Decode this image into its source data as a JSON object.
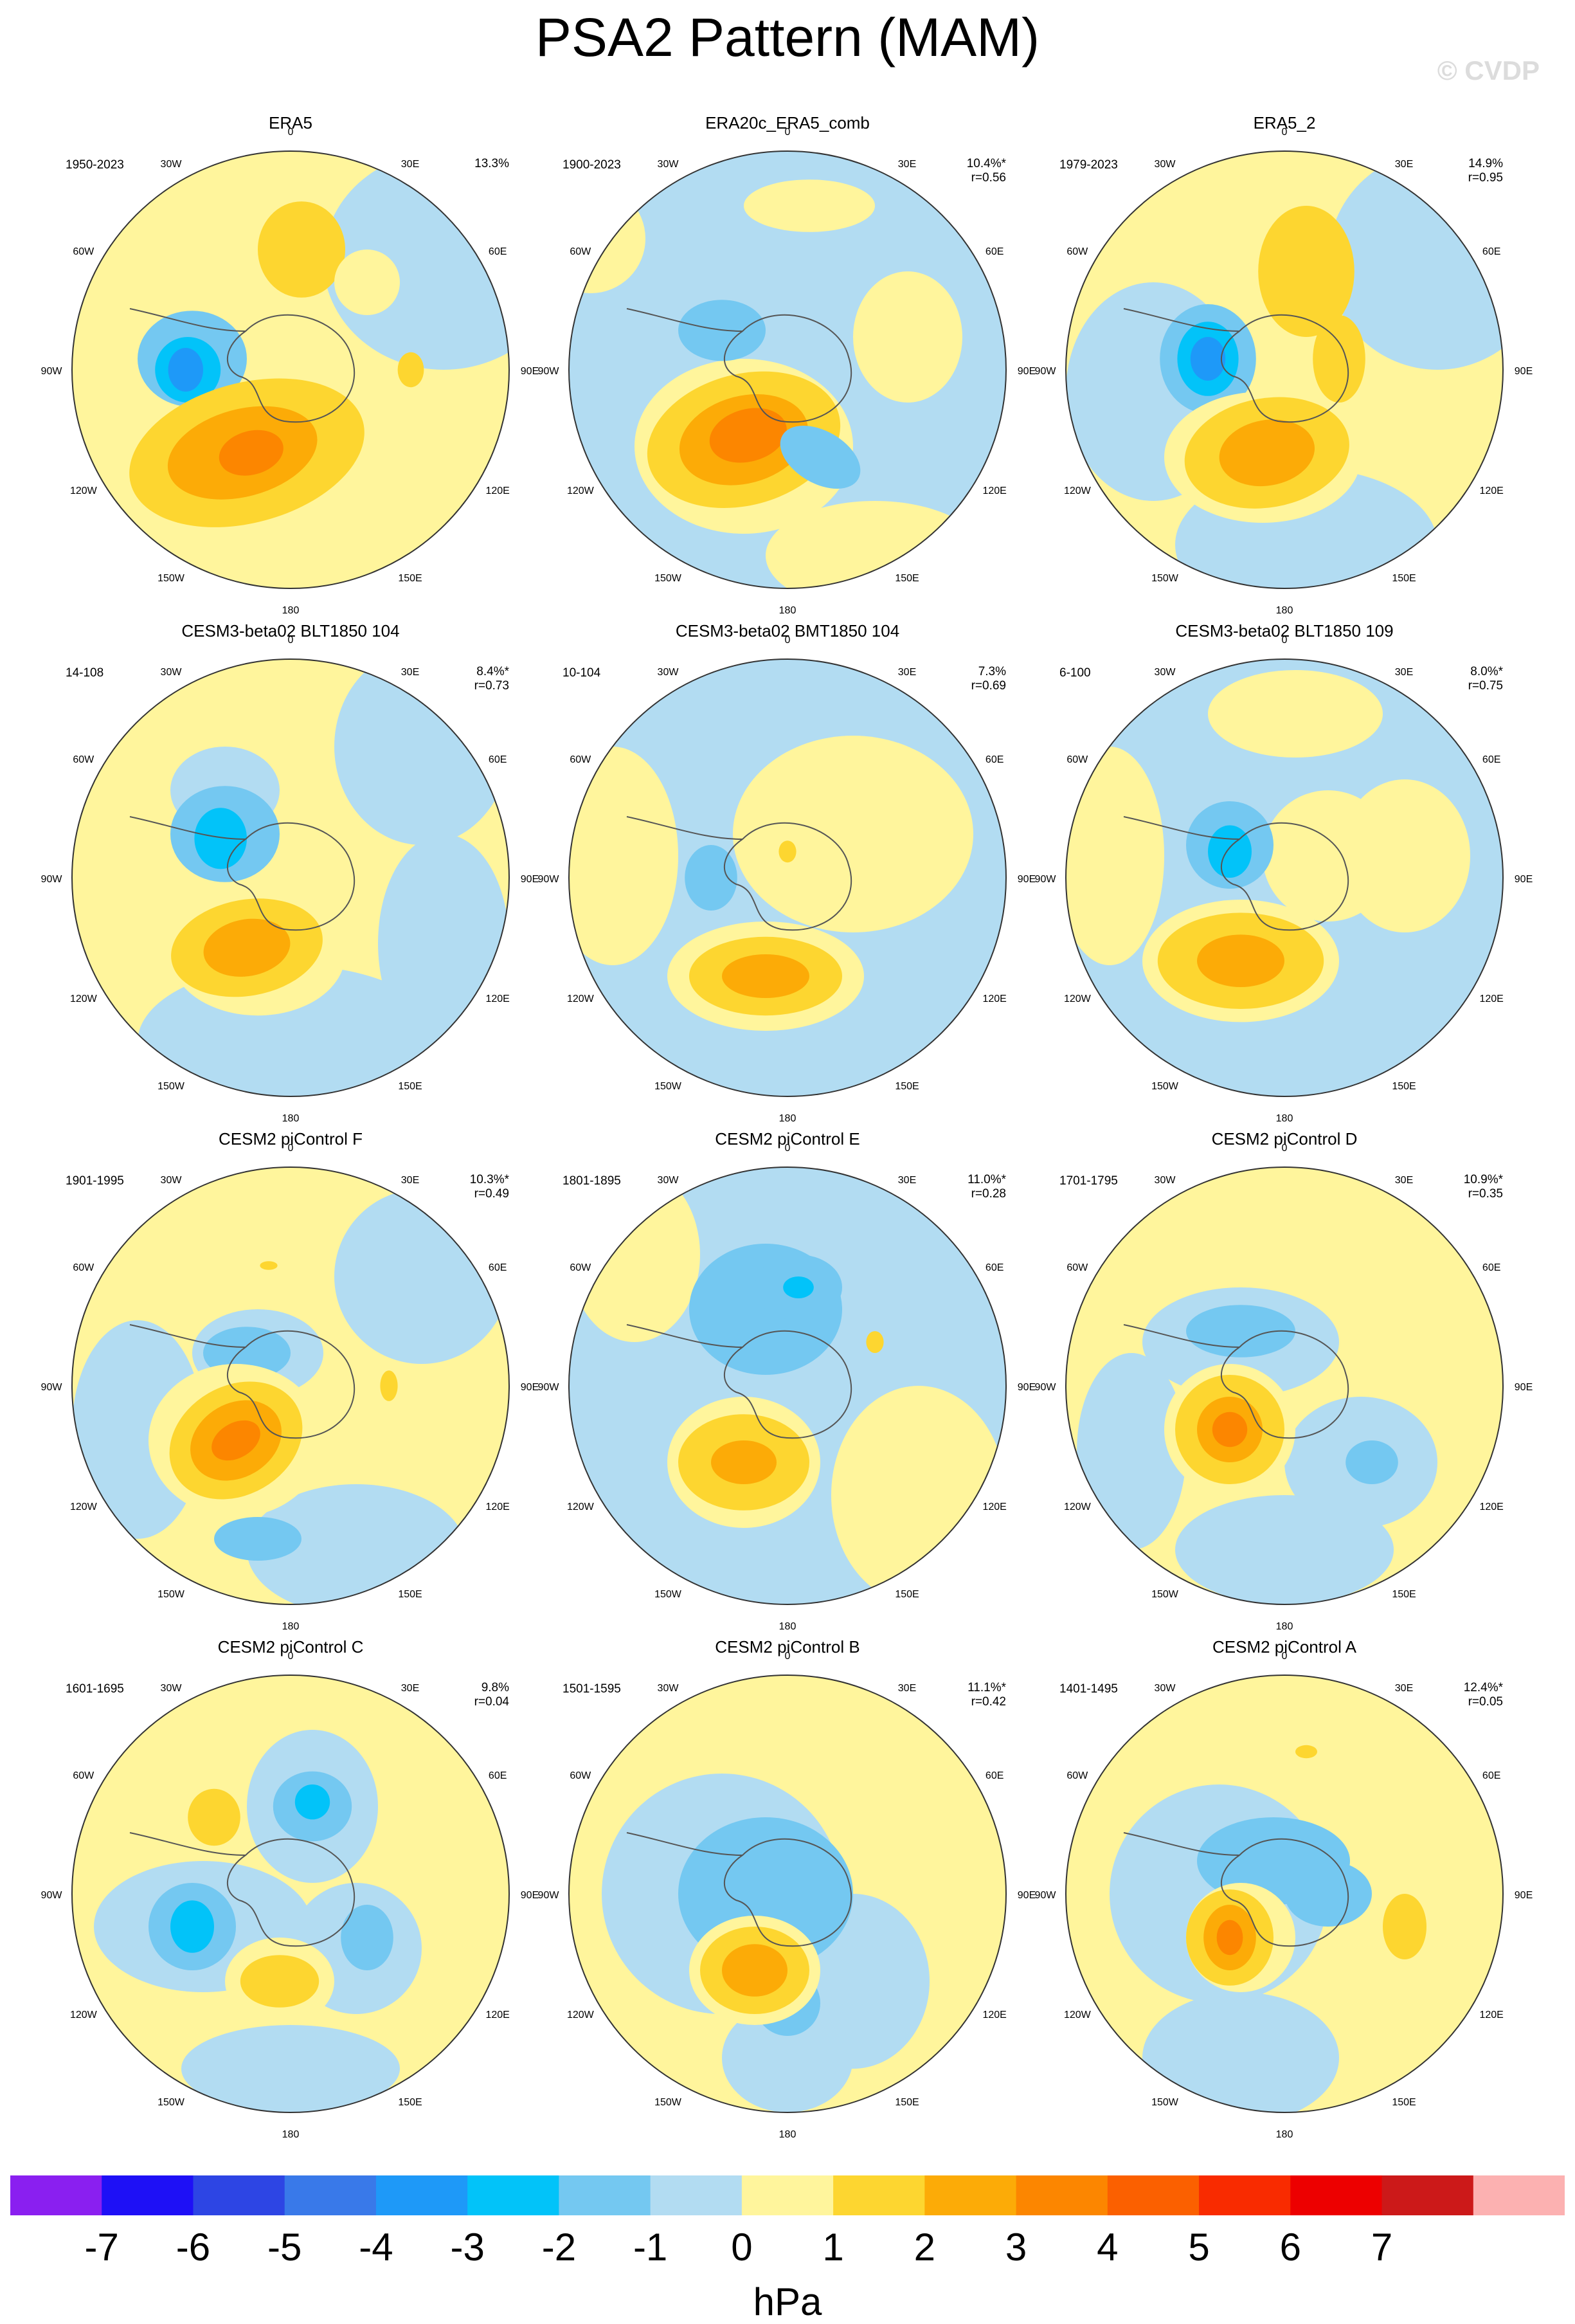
{
  "title": "PSA2 Pattern (MAM)",
  "watermark": "© CVDP",
  "colors": {
    "-7": "#8a1ff0",
    "-6": "#1e10f6",
    "-5": "#2d45e4",
    "-4": "#3979e9",
    "-3": "#1e99f8",
    "-2": "#02c3f9",
    "-1": "#74c8f1",
    "0n": "#b2dcf2",
    "0p": "#fff59c",
    "1": "#fdd630",
    "2": "#fcab07",
    "3": "#fc8600",
    "4": "#fb6000",
    "5": "#f92b00",
    "6": "#ed0000",
    "7": "#cc1919",
    "8": "#fcb1b1"
  },
  "lon_labels": [
    "0",
    "30E",
    "60E",
    "90E",
    "120E",
    "150E",
    "180",
    "150W",
    "120W",
    "90W",
    "60W",
    "30W"
  ],
  "colorbar": {
    "labels": [
      "-7",
      "-6",
      "-5",
      "-4",
      "-3",
      "-2",
      "-1",
      "0",
      "1",
      "2",
      "3",
      "4",
      "5",
      "6",
      "7"
    ],
    "unit": "hPa"
  },
  "panels": [
    {
      "title": "ERA5",
      "years": "1950-2023",
      "pct": "13.3%",
      "corr": "",
      "base": "0p",
      "blobs": [
        [
          "0n",
          0.7,
          0.5,
          0.55,
          0.5,
          0
        ],
        [
          "0p",
          0.55,
          -0.6,
          0.35,
          0.3,
          0
        ],
        [
          "0p",
          -0.3,
          0.7,
          0.3,
          0.3,
          0
        ],
        [
          "-1",
          -0.45,
          0.05,
          0.25,
          0.22,
          0
        ],
        [
          "-2",
          -0.47,
          0.0,
          0.15,
          0.15,
          0
        ],
        [
          "-3",
          -0.48,
          0.0,
          0.08,
          0.1,
          0
        ],
        [
          "0p",
          0,
          -0.45,
          0.3,
          0.25,
          0
        ],
        [
          "1",
          -0.2,
          -0.38,
          0.55,
          0.32,
          -15
        ],
        [
          "2",
          -0.22,
          -0.38,
          0.35,
          0.2,
          -15
        ],
        [
          "3",
          -0.18,
          -0.38,
          0.15,
          0.1,
          -15
        ],
        [
          "1",
          0.05,
          0.55,
          0.2,
          0.22,
          0
        ],
        [
          "1",
          0.55,
          0.0,
          0.06,
          0.08,
          0
        ],
        [
          "0p",
          0.35,
          0.4,
          0.15,
          0.15,
          0
        ]
      ]
    },
    {
      "title": "ERA20c_ERA5_comb",
      "years": "1900-2023",
      "pct": "10.4%*",
      "corr": "r=0.56",
      "base": "0n",
      "blobs": [
        [
          "0p",
          -0.9,
          0.6,
          0.25,
          0.25,
          0
        ],
        [
          "0p",
          0.1,
          0.75,
          0.3,
          0.12,
          0
        ],
        [
          "0p",
          0.55,
          0.15,
          0.25,
          0.3,
          0
        ],
        [
          "0p",
          0.4,
          -0.85,
          0.5,
          0.25,
          0
        ],
        [
          "0p",
          -0.2,
          -0.35,
          0.5,
          0.4,
          0
        ],
        [
          "1",
          -0.2,
          -0.32,
          0.45,
          0.3,
          -15
        ],
        [
          "2",
          -0.2,
          -0.32,
          0.3,
          0.2,
          -15
        ],
        [
          "3",
          -0.18,
          -0.3,
          0.18,
          0.12,
          -15
        ],
        [
          "-1",
          0.15,
          -0.4,
          0.2,
          0.12,
          30
        ],
        [
          "-1",
          -0.3,
          0.18,
          0.2,
          0.14,
          0
        ]
      ]
    },
    {
      "title": "ERA5_2",
      "years": "1979-2023",
      "pct": "14.9%",
      "corr": "r=0.95",
      "base": "0p",
      "blobs": [
        [
          "0n",
          0.7,
          0.5,
          0.5,
          0.5,
          0
        ],
        [
          "0n",
          0.1,
          -0.8,
          0.6,
          0.35,
          0
        ],
        [
          "0n",
          -0.6,
          -0.1,
          0.4,
          0.5,
          0
        ],
        [
          "1",
          0.1,
          0.45,
          0.22,
          0.3,
          0
        ],
        [
          "-1",
          -0.35,
          0.05,
          0.22,
          0.25,
          0
        ],
        [
          "-2",
          -0.35,
          0.05,
          0.14,
          0.17,
          0
        ],
        [
          "-3",
          -0.35,
          0.05,
          0.08,
          0.1,
          0
        ],
        [
          "0p",
          -0.1,
          -0.4,
          0.45,
          0.3,
          0
        ],
        [
          "1",
          -0.08,
          -0.38,
          0.38,
          0.25,
          -10
        ],
        [
          "2",
          -0.08,
          -0.38,
          0.22,
          0.15,
          -10
        ],
        [
          "1",
          0.25,
          0.05,
          0.12,
          0.2,
          0
        ]
      ]
    },
    {
      "title": "CESM3-beta02 BLT1850 104",
      "years": "14-108",
      "pct": "8.4%*",
      "corr": "r=0.73",
      "base": "0p",
      "blobs": [
        [
          "0n",
          0.6,
          0.6,
          0.4,
          0.45,
          0
        ],
        [
          "0n",
          0.0,
          -0.75,
          0.7,
          0.35,
          0
        ],
        [
          "0n",
          0.7,
          -0.3,
          0.3,
          0.5,
          0
        ],
        [
          "0n",
          -0.3,
          0.4,
          0.25,
          0.2,
          0
        ],
        [
          "-1",
          -0.3,
          0.2,
          0.25,
          0.22,
          0
        ],
        [
          "-2",
          -0.32,
          0.18,
          0.12,
          0.14,
          0
        ],
        [
          "0p",
          -0.15,
          -0.35,
          0.4,
          0.28,
          0
        ],
        [
          "1",
          -0.2,
          -0.32,
          0.35,
          0.22,
          -10
        ],
        [
          "2",
          -0.2,
          -0.32,
          0.2,
          0.13,
          -10
        ]
      ]
    },
    {
      "title": "CESM3-beta02 BMT1850 104",
      "years": "10-104",
      "pct": "7.3%",
      "corr": "r=0.69",
      "base": "0n",
      "blobs": [
        [
          "0p",
          -0.8,
          0.1,
          0.3,
          0.5,
          0
        ],
        [
          "0p",
          0.3,
          0.2,
          0.55,
          0.45,
          0
        ],
        [
          "0p",
          -0.1,
          -0.45,
          0.45,
          0.25,
          0
        ],
        [
          "1",
          -0.1,
          -0.45,
          0.35,
          0.18,
          0
        ],
        [
          "2",
          -0.1,
          -0.45,
          0.2,
          0.1,
          0
        ],
        [
          "-1",
          -0.35,
          0.0,
          0.12,
          0.15,
          0
        ],
        [
          "1",
          0.0,
          0.12,
          0.04,
          0.05,
          0
        ]
      ]
    },
    {
      "title": "CESM3-beta02 BLT1850 109",
      "years": "6-100",
      "pct": "8.0%*",
      "corr": "r=0.75",
      "base": "0n",
      "blobs": [
        [
          "0p",
          -0.8,
          0.1,
          0.25,
          0.5,
          0
        ],
        [
          "0p",
          0.05,
          0.75,
          0.4,
          0.2,
          0
        ],
        [
          "0p",
          0.55,
          0.1,
          0.3,
          0.35,
          0
        ],
        [
          "0p",
          0.2,
          0.1,
          0.3,
          0.3,
          0
        ],
        [
          "0p",
          -0.2,
          -0.38,
          0.45,
          0.28,
          0
        ],
        [
          "1",
          -0.2,
          -0.38,
          0.38,
          0.22,
          0
        ],
        [
          "2",
          -0.2,
          -0.38,
          0.2,
          0.12,
          0
        ],
        [
          "-1",
          -0.25,
          0.15,
          0.2,
          0.2,
          0
        ],
        [
          "-2",
          -0.25,
          0.12,
          0.1,
          0.12,
          0
        ]
      ]
    },
    {
      "title": "CESM2 piControl F",
      "years": "1901-1995",
      "pct": "10.3%*",
      "corr": "r=0.49",
      "base": "0p",
      "blobs": [
        [
          "0n",
          0.6,
          0.5,
          0.4,
          0.4,
          0
        ],
        [
          "0n",
          0.3,
          -0.75,
          0.5,
          0.3,
          0
        ],
        [
          "0n",
          -0.7,
          -0.2,
          0.3,
          0.5,
          0
        ],
        [
          "0n",
          -0.15,
          0.15,
          0.3,
          0.2,
          0
        ],
        [
          "-1",
          -0.2,
          0.15,
          0.2,
          0.12,
          0
        ],
        [
          "-1",
          -0.15,
          -0.7,
          0.2,
          0.1,
          0
        ],
        [
          "0p",
          -0.25,
          -0.25,
          0.4,
          0.35,
          0
        ],
        [
          "1",
          -0.25,
          -0.25,
          0.32,
          0.25,
          -30
        ],
        [
          "2",
          -0.25,
          -0.25,
          0.22,
          0.17,
          -30
        ],
        [
          "3",
          -0.25,
          -0.25,
          0.12,
          0.08,
          -30
        ],
        [
          "1",
          0.45,
          0.0,
          0.04,
          0.07,
          0
        ],
        [
          "1",
          -0.1,
          0.55,
          0.04,
          0.02,
          0
        ]
      ]
    },
    {
      "title": "CESM2 piControl E",
      "years": "1801-1895",
      "pct": "11.0%*",
      "corr": "r=0.28",
      "base": "0n",
      "blobs": [
        [
          "0p",
          -0.7,
          0.6,
          0.3,
          0.4,
          0
        ],
        [
          "0p",
          0.6,
          -0.5,
          0.4,
          0.5,
          0
        ],
        [
          "0p",
          -0.2,
          -0.35,
          0.35,
          0.3,
          0
        ],
        [
          "1",
          -0.2,
          -0.35,
          0.3,
          0.22,
          0
        ],
        [
          "2",
          -0.2,
          -0.35,
          0.15,
          0.1,
          0
        ],
        [
          "-1",
          -0.1,
          0.35,
          0.35,
          0.3,
          0
        ],
        [
          "-1",
          0.05,
          0.45,
          0.2,
          0.15,
          0
        ],
        [
          "-2",
          0.05,
          0.45,
          0.07,
          0.05,
          0
        ],
        [
          "1",
          0.4,
          0.2,
          0.04,
          0.05,
          0
        ]
      ]
    },
    {
      "title": "CESM2 piControl D",
      "years": "1701-1795",
      "pct": "10.9%*",
      "corr": "r=0.35",
      "base": "0p",
      "blobs": [
        [
          "0n",
          -0.2,
          0.2,
          0.45,
          0.25,
          0
        ],
        [
          "0n",
          0.35,
          -0.35,
          0.35,
          0.3,
          0
        ],
        [
          "0n",
          -0.7,
          -0.3,
          0.25,
          0.45,
          0
        ],
        [
          "0n",
          0.0,
          -0.75,
          0.5,
          0.25,
          0
        ],
        [
          "-1",
          -0.2,
          0.25,
          0.25,
          0.12,
          0
        ],
        [
          "-1",
          0.4,
          -0.35,
          0.12,
          0.1,
          0
        ],
        [
          "0p",
          -0.25,
          -0.2,
          0.3,
          0.3,
          0
        ],
        [
          "1",
          -0.25,
          -0.2,
          0.25,
          0.25,
          0
        ],
        [
          "2",
          -0.25,
          -0.2,
          0.15,
          0.15,
          0
        ],
        [
          "3",
          -0.25,
          -0.2,
          0.08,
          0.08,
          0
        ]
      ]
    },
    {
      "title": "CESM2 piControl C",
      "years": "1601-1695",
      "pct": "9.8%",
      "corr": "r=0.04",
      "base": "0p",
      "blobs": [
        [
          "0n",
          -0.4,
          -0.15,
          0.5,
          0.3,
          0
        ],
        [
          "0n",
          0.1,
          0.4,
          0.3,
          0.35,
          0
        ],
        [
          "0n",
          0.3,
          -0.25,
          0.3,
          0.3,
          0
        ],
        [
          "0n",
          0.0,
          -0.8,
          0.5,
          0.2,
          0
        ],
        [
          "-1",
          -0.45,
          -0.15,
          0.2,
          0.2,
          0
        ],
        [
          "-2",
          -0.45,
          -0.15,
          0.1,
          0.12,
          0
        ],
        [
          "-1",
          0.1,
          0.4,
          0.18,
          0.16,
          0
        ],
        [
          "-2",
          0.1,
          0.42,
          0.08,
          0.08,
          0
        ],
        [
          "-1",
          0.35,
          -0.2,
          0.12,
          0.15,
          0
        ],
        [
          "0p",
          -0.05,
          -0.4,
          0.25,
          0.2,
          0
        ],
        [
          "1",
          -0.05,
          -0.4,
          0.18,
          0.12,
          0
        ],
        [
          "1",
          -0.35,
          0.35,
          0.12,
          0.13,
          0
        ]
      ]
    },
    {
      "title": "CESM2 piControl B",
      "years": "1501-1595",
      "pct": "11.1%*",
      "corr": "r=0.42",
      "base": "0p",
      "blobs": [
        [
          "0n",
          -0.3,
          0.0,
          0.55,
          0.55,
          0
        ],
        [
          "0n",
          0.3,
          -0.4,
          0.35,
          0.4,
          0
        ],
        [
          "0n",
          0.0,
          -0.75,
          0.3,
          0.25,
          0
        ],
        [
          "-1",
          -0.1,
          0.0,
          0.4,
          0.35,
          0
        ],
        [
          "-1",
          0.0,
          -0.5,
          0.15,
          0.15,
          0
        ],
        [
          "0p",
          -0.15,
          -0.35,
          0.3,
          0.25,
          0
        ],
        [
          "1",
          -0.15,
          -0.35,
          0.25,
          0.2,
          0
        ],
        [
          "2",
          -0.15,
          -0.35,
          0.15,
          0.12,
          0
        ]
      ]
    },
    {
      "title": "CESM2 piControl A",
      "years": "1401-1495",
      "pct": "12.4%*",
      "corr": "r=0.05",
      "base": "0p",
      "blobs": [
        [
          "0n",
          -0.3,
          0.0,
          0.5,
          0.5,
          0
        ],
        [
          "0n",
          -0.2,
          -0.75,
          0.45,
          0.3,
          0
        ],
        [
          "-1",
          -0.05,
          0.15,
          0.35,
          0.2,
          0
        ],
        [
          "-1",
          0.2,
          0.0,
          0.2,
          0.15,
          0
        ],
        [
          "0p",
          -0.2,
          -0.2,
          0.25,
          0.25,
          0
        ],
        [
          "1",
          -0.25,
          -0.2,
          0.2,
          0.22,
          0
        ],
        [
          "2",
          -0.25,
          -0.2,
          0.12,
          0.15,
          0
        ],
        [
          "3",
          -0.25,
          -0.2,
          0.06,
          0.08,
          0
        ],
        [
          "1",
          0.55,
          -0.15,
          0.1,
          0.15,
          0
        ],
        [
          "1",
          0.1,
          0.65,
          0.05,
          0.03,
          0
        ]
      ]
    }
  ]
}
